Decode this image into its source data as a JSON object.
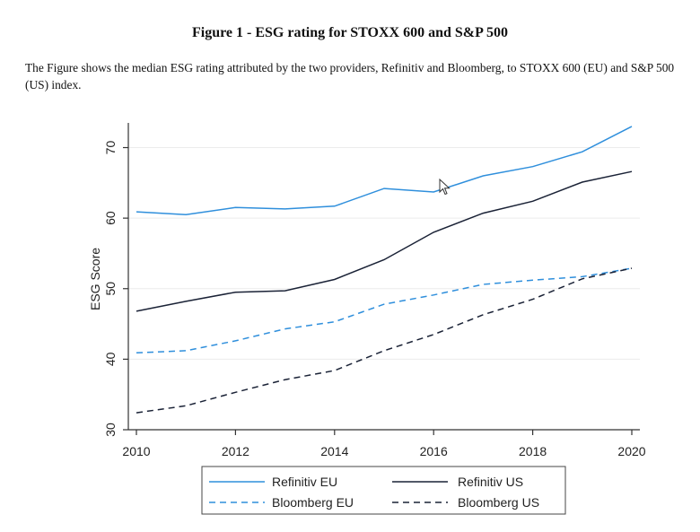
{
  "figure": {
    "title": "Figure 1 - ESG rating for STOXX 600 and S&P 500",
    "caption": "The Figure shows the median ESG rating attributed by the two providers, Refinitiv and Bloomberg, to STOXX 600 (EU) and S&P 500 (US) index."
  },
  "chart_data": {
    "type": "line",
    "title": "",
    "xlabel": "",
    "ylabel": "ESG Score",
    "xlim": [
      2010,
      2020
    ],
    "ylim": [
      30,
      73.5
    ],
    "xticks": [
      2010,
      2012,
      2014,
      2016,
      2018,
      2020
    ],
    "yticks": [
      30,
      40,
      50,
      60,
      70
    ],
    "grid": "horizontal",
    "legend_position": "bottom",
    "x": [
      2010,
      2011,
      2012,
      2013,
      2014,
      2015,
      2016,
      2017,
      2018,
      2019,
      2020
    ],
    "series": [
      {
        "name": "Refinitiv EU",
        "color": "#2f8fdc",
        "dash": "solid",
        "values": [
          60.9,
          60.5,
          61.5,
          61.3,
          61.7,
          64.2,
          63.7,
          66.0,
          67.3,
          69.4,
          73.0
        ]
      },
      {
        "name": "Refinitiv US",
        "color": "#1a2236",
        "dash": "solid",
        "values": [
          46.8,
          48.2,
          49.5,
          49.7,
          51.3,
          54.1,
          58.0,
          60.7,
          62.4,
          65.1,
          66.6
        ]
      },
      {
        "name": "Bloomberg EU",
        "color": "#2f8fdc",
        "dash": "dashed",
        "values": [
          40.9,
          41.2,
          42.6,
          44.3,
          45.3,
          47.8,
          49.1,
          50.6,
          51.2,
          51.7,
          52.9
        ]
      },
      {
        "name": "Bloomberg US",
        "color": "#1a2236",
        "dash": "dashed",
        "values": [
          32.4,
          33.4,
          35.3,
          37.1,
          38.4,
          41.2,
          43.5,
          46.3,
          48.5,
          51.4,
          52.9
        ]
      }
    ]
  }
}
